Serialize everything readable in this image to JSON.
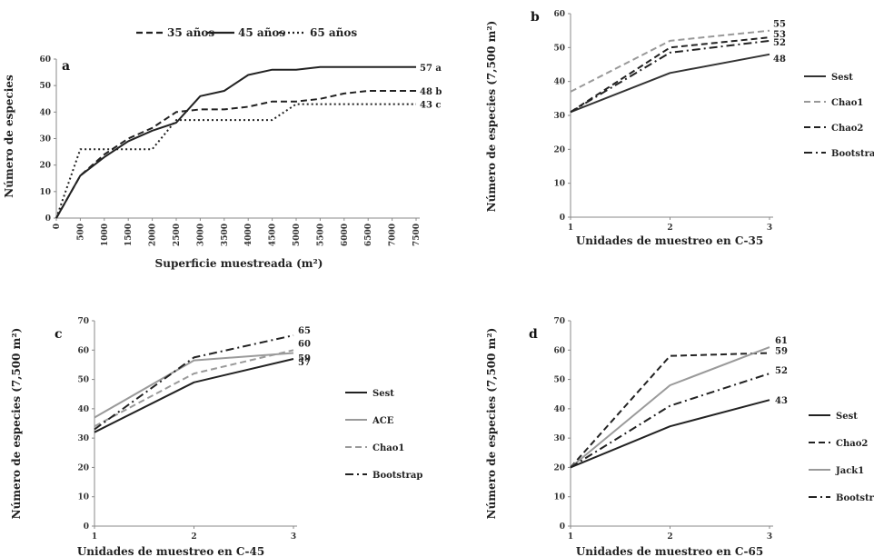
{
  "chart_data": [
    {
      "panel": "a",
      "type": "line",
      "xlabel": "Superficie muestreada (m²)",
      "ylabel": "Número de especies",
      "ylim": [
        0,
        60
      ],
      "yticks": [
        "0",
        "10",
        "20",
        "30",
        "40",
        "50",
        "60"
      ],
      "categories": [
        "0",
        "500",
        "1000",
        "1500",
        "2000",
        "2500",
        "3000",
        "3500",
        "4000",
        "4500",
        "5000",
        "5500",
        "6000",
        "6500",
        "7000",
        "7500"
      ],
      "series": [
        {
          "name": "35 años",
          "style": "dashed",
          "color": "#222222",
          "end_label": "48 b",
          "values": [
            0,
            16,
            24,
            30,
            34,
            40,
            41,
            41,
            42,
            44,
            44,
            45,
            47,
            48,
            48,
            48
          ]
        },
        {
          "name": "45 años",
          "style": "solid",
          "color": "#222222",
          "end_label": "57 a",
          "values": [
            0,
            16,
            23,
            29,
            33,
            36,
            46,
            48,
            54,
            56,
            56,
            57,
            57,
            57,
            57,
            57
          ]
        },
        {
          "name": "65 años",
          "style": "dotted",
          "color": "#222222",
          "end_label": "43 c",
          "values": [
            0,
            26,
            26,
            26,
            26,
            37,
            37,
            37,
            37,
            37,
            43,
            43,
            43,
            43,
            43,
            43
          ]
        }
      ]
    },
    {
      "panel": "b",
      "type": "line",
      "xlabel": "Unidades de muestreo en C-35",
      "ylabel": "Número de especies (7,500 m²)",
      "ylim": [
        0,
        60
      ],
      "yticks": [
        "0",
        "10",
        "20",
        "30",
        "40",
        "50",
        "60"
      ],
      "categories": [
        "1",
        "2",
        "3"
      ],
      "series": [
        {
          "name": "Sest",
          "style": "solid",
          "color": "#333333",
          "values": [
            31,
            42.5,
            48
          ],
          "end_label": "48"
        },
        {
          "name": "Chao1",
          "style": "dashed",
          "color": "#999999",
          "values": [
            37,
            52,
            55
          ],
          "end_label": "55"
        },
        {
          "name": "Chao2",
          "style": "dashed",
          "color": "#222222",
          "values": [
            31,
            50,
            53
          ],
          "end_label": "53"
        },
        {
          "name": "Bootstrap",
          "style": "dashdot",
          "color": "#222222",
          "values": [
            31,
            48.5,
            52
          ],
          "end_label": "52"
        }
      ]
    },
    {
      "panel": "c",
      "type": "line",
      "xlabel": "Unidades de muestreo en C-45",
      "ylabel": "Número de especies (7,500 m²)",
      "ylim": [
        0,
        70
      ],
      "yticks": [
        "0",
        "10",
        "20",
        "30",
        "40",
        "50",
        "60",
        "70"
      ],
      "categories": [
        "1",
        "2",
        "3"
      ],
      "series": [
        {
          "name": "Sest",
          "style": "solid",
          "color": "#222222",
          "values": [
            32,
            49,
            57
          ],
          "end_label": "57"
        },
        {
          "name": "ACE",
          "style": "solid",
          "color": "#9a9a9a",
          "values": [
            37,
            56.5,
            59
          ],
          "end_label": "59"
        },
        {
          "name": "Chao1",
          "style": "dashed",
          "color": "#9a9a9a",
          "values": [
            34,
            52,
            60
          ],
          "end_label": "60"
        },
        {
          "name": "Bootstrap",
          "style": "dashdot",
          "color": "#222222",
          "values": [
            33,
            57.5,
            65
          ],
          "end_label": "65"
        }
      ]
    },
    {
      "panel": "d",
      "type": "line",
      "xlabel": "Unidades de muestreo en C-65",
      "ylabel": "Número de especies (7,500 m²)",
      "ylim": [
        0,
        70
      ],
      "yticks": [
        "0",
        "10",
        "20",
        "30",
        "40",
        "50",
        "60",
        "70"
      ],
      "categories": [
        "1",
        "2",
        "3"
      ],
      "series": [
        {
          "name": "Sest",
          "style": "solid",
          "color": "#222222",
          "values": [
            20,
            34,
            43
          ],
          "end_label": "43"
        },
        {
          "name": "Chao2",
          "style": "dashed",
          "color": "#222222",
          "values": [
            20,
            58,
            59
          ],
          "end_label": "59"
        },
        {
          "name": "Jack1",
          "style": "solid",
          "color": "#9a9a9a",
          "values": [
            20,
            48,
            61
          ],
          "end_label": "61"
        },
        {
          "name": "Bootstrap",
          "style": "dashdot",
          "color": "#222222",
          "values": [
            20,
            41,
            52
          ],
          "end_label": "52"
        }
      ]
    }
  ]
}
